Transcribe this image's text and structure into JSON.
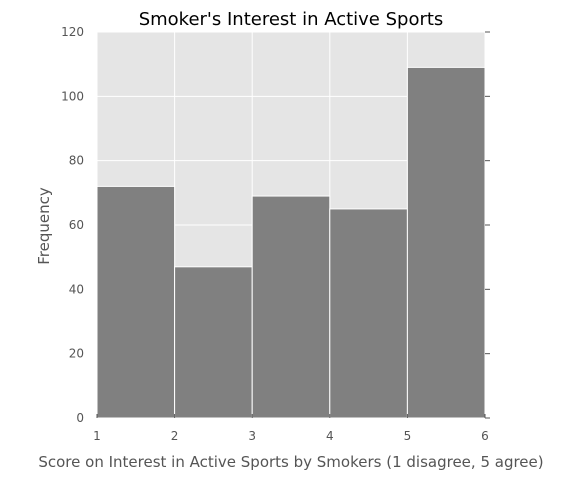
{
  "chart_data": {
    "type": "bar",
    "title": "Smoker's Interest in Active Sports",
    "xlabel": "Score on Interest in Active Sports by Smokers (1 disagree, 5 agree)",
    "ylabel": "Frequency",
    "bins": [
      {
        "x0": 1,
        "x1": 2,
        "value": 72
      },
      {
        "x0": 2,
        "x1": 3,
        "value": 47
      },
      {
        "x0": 3,
        "x1": 4,
        "value": 69
      },
      {
        "x0": 4,
        "x1": 5,
        "value": 65
      },
      {
        "x0": 5,
        "x1": 6,
        "value": 109
      }
    ],
    "xlim": [
      1,
      6
    ],
    "ylim": [
      0,
      120
    ],
    "xticks": [
      1,
      2,
      3,
      4,
      5,
      6
    ],
    "yticks": [
      0,
      20,
      40,
      60,
      80,
      100,
      120
    ],
    "grid": true,
    "colors": {
      "bar": "#808080",
      "plot_background": "#e5e5e5",
      "grid": "#ffffff",
      "bar_edge": "#ffffff"
    }
  }
}
